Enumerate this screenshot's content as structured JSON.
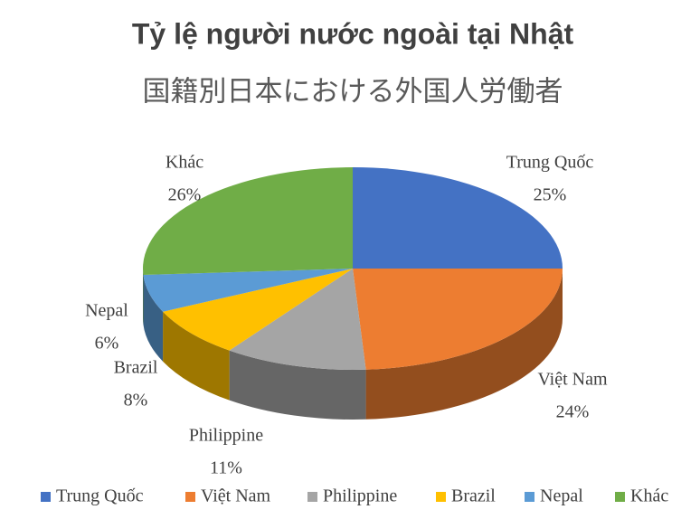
{
  "chart_data": {
    "type": "pie",
    "title": "Tỷ lệ người nước ngoài tại Nhật",
    "subtitle": "国籍別日本における外国人労働者",
    "categories": [
      "Trung Quốc",
      "Việt Nam",
      "Philippine",
      "Brazil",
      "Nepal",
      "Khác"
    ],
    "values": [
      25,
      24,
      11,
      8,
      6,
      26
    ],
    "value_labels": [
      "25%",
      "24%",
      "11%",
      "8%",
      "6%",
      "26%"
    ],
    "colors": [
      "#4472c4",
      "#ed7d31",
      "#a5a5a5",
      "#ffc000",
      "#5b9bd5",
      "#70ad47"
    ]
  }
}
